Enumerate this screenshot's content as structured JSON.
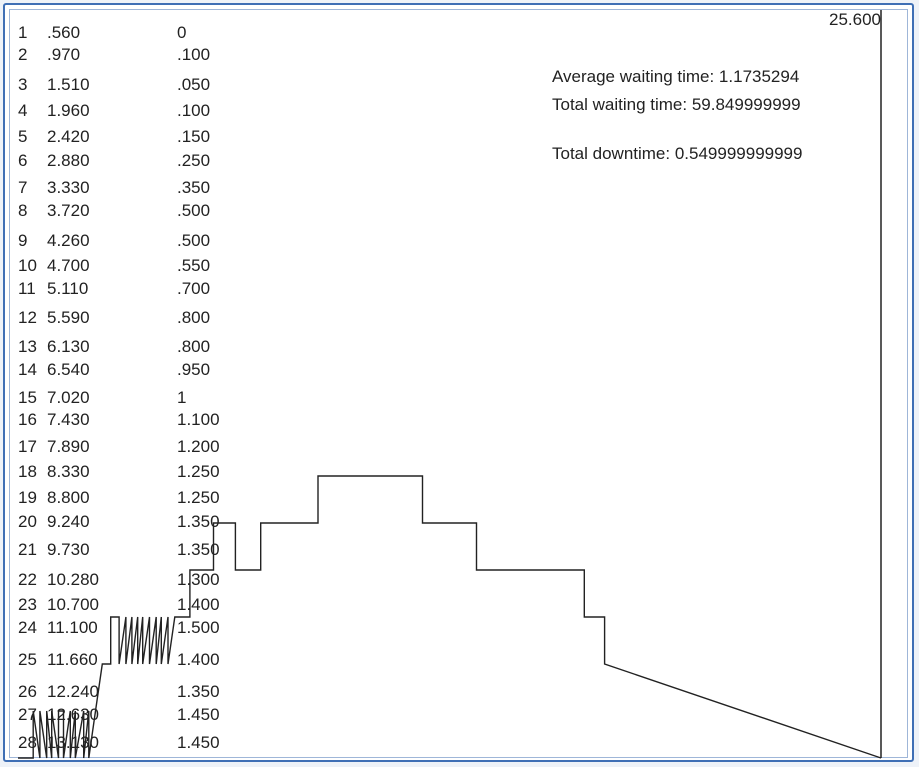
{
  "chart_data": {
    "type": "line",
    "x_max_label": "25.600",
    "stats": [
      "Average waiting time: 1.1735294",
      "Total waiting time: 59.849999999",
      "Total downtime: 0.549999999999"
    ],
    "table_rows": [
      [
        "1",
        ".560",
        "0"
      ],
      [
        "2",
        ".970",
        ".100"
      ],
      [
        "3",
        "1.510",
        ".050"
      ],
      [
        "4",
        "1.960",
        ".100"
      ],
      [
        "5",
        "2.420",
        ".150"
      ],
      [
        "6",
        "2.880",
        ".250"
      ],
      [
        "7",
        "3.330",
        ".350"
      ],
      [
        "8",
        "3.720",
        ".500"
      ],
      [
        "9",
        "4.260",
        ".500"
      ],
      [
        "10",
        "4.700",
        ".550"
      ],
      [
        "11",
        "5.110",
        ".700"
      ],
      [
        "12",
        "5.590",
        ".800"
      ],
      [
        "13",
        "6.130",
        ".800"
      ],
      [
        "14",
        "6.540",
        ".950"
      ],
      [
        "15",
        "7.020",
        "1"
      ],
      [
        "16",
        "7.430",
        "1.100"
      ],
      [
        "17",
        "7.890",
        "1.200"
      ],
      [
        "18",
        "8.330",
        "1.250"
      ],
      [
        "19",
        "8.800",
        "1.250"
      ],
      [
        "20",
        "9.240",
        "1.350"
      ],
      [
        "21",
        "9.730",
        "1.350"
      ],
      [
        "22",
        "10.280",
        "1.300"
      ],
      [
        "23",
        "10.700",
        "1.400"
      ],
      [
        "24",
        "11.100",
        "1.500"
      ],
      [
        "25",
        "11.660",
        "1.400"
      ],
      [
        "26",
        "12.240",
        "1.350"
      ],
      [
        "27",
        "12.630",
        "1.450"
      ],
      [
        "28",
        "13.130",
        "1.450"
      ]
    ],
    "series": [
      {
        "x": [
          0,
          0.45,
          0.45,
          0.65,
          0.65,
          0.85,
          0.85,
          1.0,
          1.0,
          1.2,
          1.2,
          1.35,
          1.35,
          1.55,
          1.55,
          1.7,
          1.7,
          1.95,
          1.95,
          2.1,
          2.1,
          2.3,
          2.3,
          2.5,
          2.5,
          2.75,
          2.75,
          3.0,
          3.0,
          3.2,
          3.2,
          3.38,
          3.38,
          3.55,
          3.55,
          3.7,
          3.7,
          3.9,
          3.9,
          4.1,
          4.1,
          4.25,
          4.25,
          4.45,
          4.45,
          4.65,
          4.65,
          5.1,
          5.1,
          5.8,
          5.8,
          6.45,
          6.45,
          7.2,
          7.2,
          8.9,
          8.9,
          12.0,
          12.0,
          13.6,
          13.6,
          16.8,
          16.8,
          17.4,
          17.4,
          25.6
        ],
        "y": [
          0,
          0,
          1,
          0,
          1,
          0,
          1,
          0,
          1,
          0,
          1,
          1,
          0,
          1,
          0,
          1,
          0,
          1,
          0,
          1,
          0,
          1,
          1,
          2,
          2,
          2,
          3,
          3,
          2,
          3,
          2,
          3,
          2,
          3,
          2,
          3,
          2,
          3,
          2,
          3,
          2,
          3,
          2,
          3,
          2,
          3,
          3,
          3,
          4,
          4,
          5,
          5,
          4,
          4,
          5,
          5,
          6,
          6,
          5,
          5,
          4,
          4,
          3,
          3,
          2,
          0
        ],
        "note_pattern": "step"
      }
    ],
    "xlim": [
      0,
      25.6
    ],
    "grid": false
  }
}
